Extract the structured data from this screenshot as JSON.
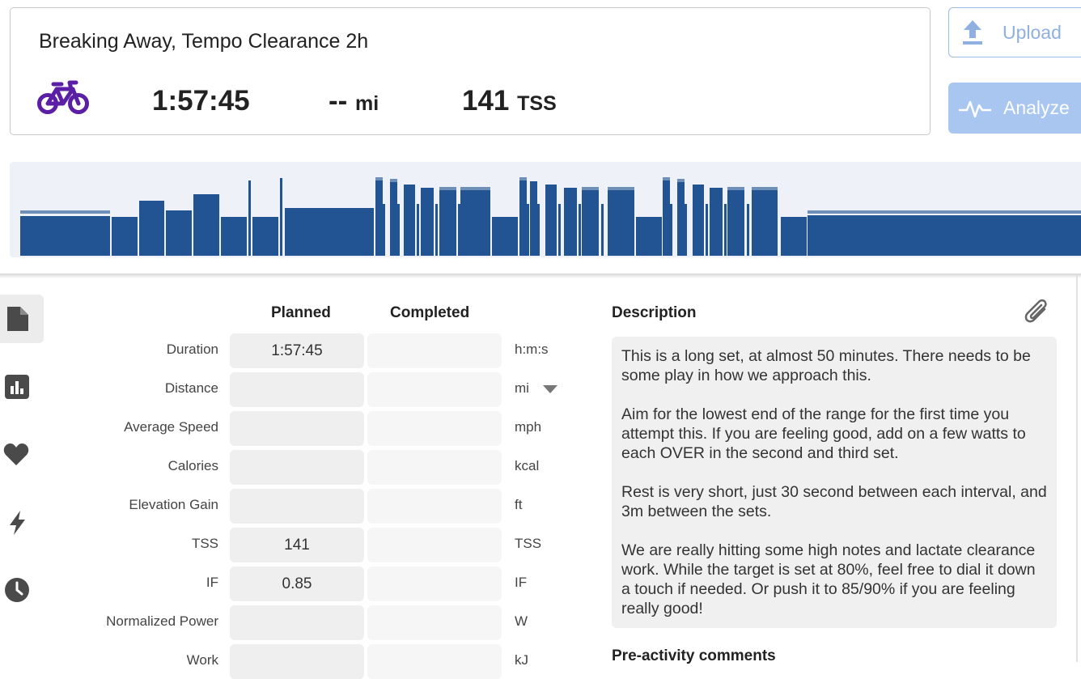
{
  "workout": {
    "title": "Breaking Away, Tempo Clearance 2h",
    "sport_icon": "bike-icon",
    "duration": "1:57:45",
    "distance_value": "--",
    "distance_unit": "mi",
    "tss_value": "141",
    "tss_unit": "TSS"
  },
  "actions": {
    "upload_label": "Upload",
    "analyze_label": "Analyze"
  },
  "colors": {
    "accent_purple": "#5b1fa6",
    "bar_blue": "#225493",
    "bar_light": "#6e8fb8",
    "button_blue": "#a8c6f0"
  },
  "sidebar": {
    "items": [
      {
        "icon": "document-icon",
        "active": true
      },
      {
        "icon": "bar-chart-icon",
        "active": false
      },
      {
        "icon": "heart-icon",
        "active": false
      },
      {
        "icon": "lightning-icon",
        "active": false
      },
      {
        "icon": "clock-icon",
        "active": false
      }
    ]
  },
  "table": {
    "headers": {
      "planned": "Planned",
      "completed": "Completed"
    },
    "rows": [
      {
        "label": "Duration",
        "planned": "1:57:45",
        "completed": "",
        "unit": "h:m:s"
      },
      {
        "label": "Distance",
        "planned": "",
        "completed": "",
        "unit": "mi"
      },
      {
        "label": "Average Speed",
        "planned": "",
        "completed": "",
        "unit": "mph"
      },
      {
        "label": "Calories",
        "planned": "",
        "completed": "",
        "unit": "kcal"
      },
      {
        "label": "Elevation Gain",
        "planned": "",
        "completed": "",
        "unit": "ft"
      },
      {
        "label": "TSS",
        "planned": "141",
        "completed": "",
        "unit": "TSS"
      },
      {
        "label": "IF",
        "planned": "0.85",
        "completed": "",
        "unit": "IF"
      },
      {
        "label": "Normalized Power",
        "planned": "",
        "completed": "",
        "unit": "W"
      },
      {
        "label": "Work",
        "planned": "",
        "completed": "",
        "unit": "kJ"
      }
    ]
  },
  "description": {
    "heading": "Description",
    "paragraphs": [
      "This is a long set, at almost 50 minutes. There needs to be some play in how we approach this.",
      "Aim for the lowest end of the range for the first time you attempt this. If you are feeling good, add on a few watts to each OVER in the second and third set.",
      "Rest is very short, just 30 second between each interval, and 3m between the sets.",
      "We are really hitting some high notes and lactate clearance work. While the target is set at 80%, feel free to dial it down a touch if needed. Or push it to 85/90% if you are feeling really good!"
    ]
  },
  "pre_activity": {
    "heading": "Pre-activity comments"
  }
}
